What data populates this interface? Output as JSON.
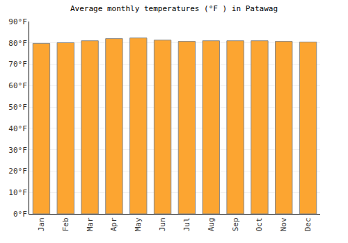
{
  "chart_data": {
    "type": "bar",
    "title": "Average monthly temperatures (°F ) in Patawag",
    "categories": [
      "Jan",
      "Feb",
      "Mar",
      "Apr",
      "May",
      "Jun",
      "Jul",
      "Aug",
      "Sep",
      "Oct",
      "Nov",
      "Dec"
    ],
    "values": [
      79.8,
      80.1,
      81.0,
      82.0,
      82.3,
      81.3,
      80.7,
      81.0,
      81.0,
      81.0,
      80.7,
      80.4
    ],
    "color": "#fca531",
    "ylim": [
      0,
      90
    ],
    "yticks": [
      {
        "value": 0,
        "label": "0°F"
      },
      {
        "value": 10,
        "label": "10°F"
      },
      {
        "value": 20,
        "label": "20°F"
      },
      {
        "value": 30,
        "label": "30°F"
      },
      {
        "value": 40,
        "label": "40°F"
      },
      {
        "value": 50,
        "label": "50°F"
      },
      {
        "value": 60,
        "label": "60°F"
      },
      {
        "value": 70,
        "label": "70°F"
      },
      {
        "value": 80,
        "label": "80°F"
      },
      {
        "value": 90,
        "label": "90°F"
      }
    ],
    "grid": true
  }
}
